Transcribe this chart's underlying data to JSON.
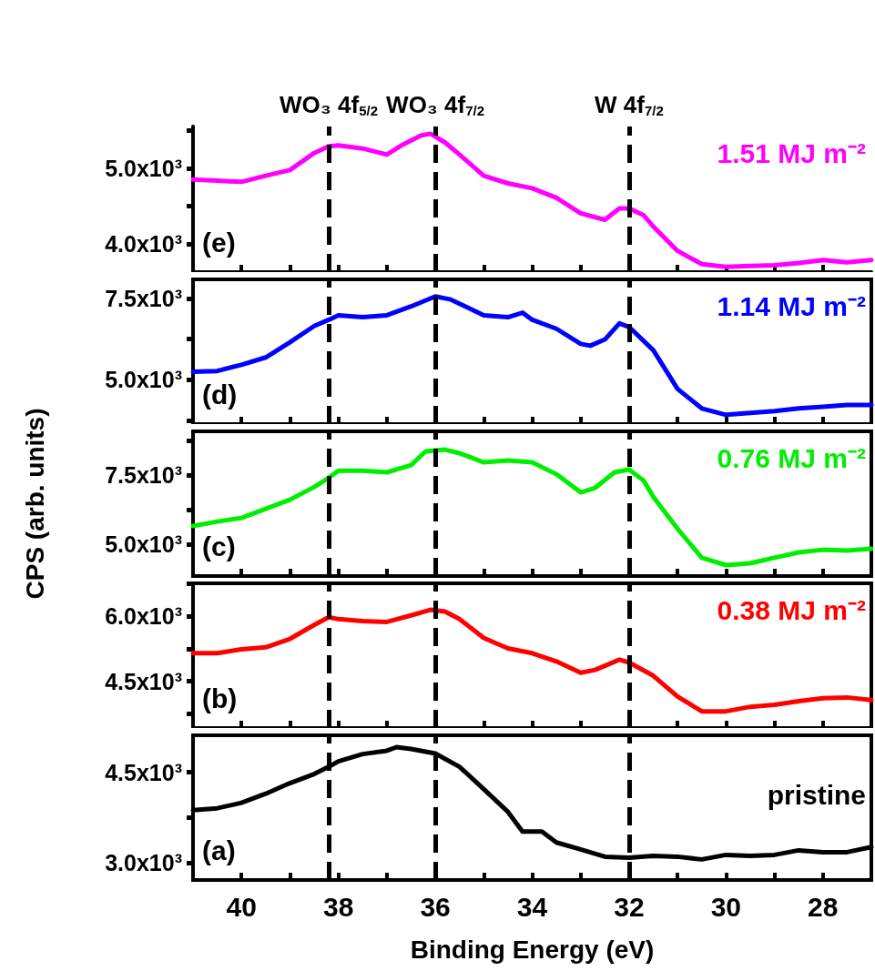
{
  "chart_data": [
    {
      "type": "line",
      "xlim": [
        41,
        27
      ],
      "xticks": [
        40,
        {
          "value": 39,
          "label": null
        },
        38,
        {
          "value": 37,
          "label": null
        },
        36,
        {
          "value": 35,
          "label": null
        },
        34,
        {
          "value": 33,
          "label": null
        },
        32,
        {
          "value": 31,
          "label": null
        },
        30,
        {
          "value": 29,
          "label": null
        },
        28
      ],
      "ylim": [
        3630,
        5550
      ],
      "yticks": [
        {
          "value": 4000,
          "label": "4.0x10³"
        },
        {
          "value": 4500,
          "label": null
        },
        {
          "value": 5000,
          "label": "5.0x10³"
        },
        {
          "value": 5500,
          "label": null
        }
      ],
      "tick_labels": "y",
      "grid": false,
      "legend": false,
      "marker": "none",
      "line_style": "solid",
      "annotations": [
        "(e)"
      ],
      "ref_lines": [
        {
          "axis": "x",
          "value": 38.2,
          "label": "WO₃ 4f$_{5/2}$",
          "color": "#000000",
          "line_style": "dashed"
        },
        {
          "axis": "x",
          "value": 36.0,
          "label": "WO₃ 4f$_{7/2}$",
          "color": "#000000",
          "line_style": "dashed"
        },
        {
          "axis": "x",
          "value": 32.0,
          "label": "W 4f$_{7/2}$",
          "color": "#000000",
          "line_style": "dashed"
        }
      ],
      "x": [
        41,
        40.5,
        40,
        39.5,
        39,
        38.5,
        38.2,
        38,
        37.5,
        37,
        36.7,
        36.3,
        36.1,
        35.8,
        35.5,
        35,
        34.5,
        34,
        33.5,
        33,
        32.5,
        32.2,
        32,
        31.7,
        31.5,
        31,
        30.5,
        30,
        29.5,
        29,
        28.5,
        28,
        27.5,
        27
      ],
      "series": [
        {
          "name": "1.51 MJ m⁻²",
          "color": "#ff00ff",
          "values": [
            4850,
            4835,
            4820,
            4900,
            4975,
            5200,
            5290,
            5300,
            5260,
            5180,
            5300,
            5430,
            5455,
            5340,
            5180,
            4900,
            4800,
            4735,
            4610,
            4405,
            4320,
            4470,
            4470,
            4380,
            4230,
            3910,
            3735,
            3700,
            3710,
            3720,
            3750,
            3790,
            3760,
            3790
          ]
        }
      ]
    },
    {
      "type": "line",
      "xlim": [
        41,
        27
      ],
      "xticks": [
        40,
        {
          "value": 39,
          "label": null
        },
        38,
        {
          "value": 37,
          "label": null
        },
        36,
        {
          "value": 35,
          "label": null
        },
        34,
        {
          "value": 33,
          "label": null
        },
        32,
        {
          "value": 31,
          "label": null
        },
        30,
        {
          "value": 29,
          "label": null
        },
        28
      ],
      "ylim": [
        3640,
        8080
      ],
      "yticks": [
        {
          "value": 3750,
          "label": null
        },
        {
          "value": 5000,
          "label": "5.0x10³"
        },
        {
          "value": 6250,
          "label": null
        },
        {
          "value": 7500,
          "label": "7.5x10³"
        }
      ],
      "tick_labels": "y",
      "grid": false,
      "legend": false,
      "marker": "none",
      "line_style": "solid",
      "annotations": [
        "(d)"
      ],
      "ref_lines": [
        {
          "axis": "x",
          "value": 38.2,
          "color": "#000000",
          "line_style": "dashed"
        },
        {
          "axis": "x",
          "value": 36.0,
          "color": "#000000",
          "line_style": "dashed"
        },
        {
          "axis": "x",
          "value": 32.0,
          "color": "#000000",
          "line_style": "dashed"
        }
      ],
      "x": [
        41,
        40.5,
        40,
        39.5,
        39,
        38.5,
        38.2,
        38,
        37.5,
        37,
        36.5,
        36,
        35.7,
        35.5,
        35,
        34.5,
        34.2,
        34,
        33.5,
        33,
        32.8,
        32.5,
        32.2,
        32,
        31.5,
        31,
        30.5,
        30,
        29.5,
        29,
        28.5,
        28,
        27.5,
        27
      ],
      "series": [
        {
          "name": "1.14 MJ m⁻²",
          "color": "#0000ff",
          "values": [
            5245,
            5270,
            5460,
            5685,
            6150,
            6650,
            6840,
            6980,
            6920,
            6980,
            7250,
            7555,
            7470,
            7335,
            6980,
            6920,
            7060,
            6840,
            6565,
            6100,
            6045,
            6235,
            6730,
            6620,
            5905,
            4720,
            4120,
            3925,
            3980,
            4035,
            4120,
            4170,
            4225,
            4225
          ]
        }
      ]
    },
    {
      "type": "line",
      "xlim": [
        41,
        27
      ],
      "xticks": [
        40,
        {
          "value": 39,
          "label": null
        },
        38,
        {
          "value": 37,
          "label": null
        },
        36,
        {
          "value": 35,
          "label": null
        },
        34,
        {
          "value": 33,
          "label": null
        },
        32,
        {
          "value": 31,
          "label": null
        },
        30,
        {
          "value": 29,
          "label": null
        },
        28
      ],
      "ylim": [
        3850,
        9080
      ],
      "yticks": [
        {
          "value": 5000,
          "label": "5.0x10³"
        },
        {
          "value": 6250,
          "label": null
        },
        {
          "value": 7500,
          "label": "7.5x10³"
        },
        {
          "value": 8750,
          "label": null
        }
      ],
      "ylabel": "CPS (arb. units)",
      "tick_labels": "y",
      "grid": false,
      "legend": false,
      "marker": "none",
      "line_style": "solid",
      "annotations": [
        "(c)"
      ],
      "ref_lines": [
        {
          "axis": "x",
          "value": 38.2,
          "color": "#000000",
          "line_style": "dashed"
        },
        {
          "axis": "x",
          "value": 36.0,
          "color": "#000000",
          "line_style": "dashed"
        },
        {
          "axis": "x",
          "value": 32.0,
          "color": "#000000",
          "line_style": "dashed"
        }
      ],
      "x": [
        41,
        40.5,
        40,
        39.5,
        39,
        38.5,
        38.2,
        38,
        37.5,
        37,
        36.5,
        36.2,
        35.8,
        35.5,
        35,
        34.5,
        34,
        33.5,
        33,
        32.7,
        32.3,
        32,
        31.7,
        31.5,
        31,
        30.5,
        30,
        29.5,
        29,
        28.5,
        28,
        27.5,
        27
      ],
      "series": [
        {
          "name": "0.76 MJ m⁻²",
          "color": "#00ee00",
          "values": [
            5660,
            5820,
            5950,
            6280,
            6610,
            7070,
            7400,
            7660,
            7660,
            7600,
            7860,
            8355,
            8420,
            8290,
            7960,
            8030,
            7960,
            7530,
            6875,
            7040,
            7600,
            7700,
            7300,
            6710,
            5560,
            4510,
            4245,
            4310,
            4510,
            4705,
            4800,
            4770,
            4835
          ]
        }
      ]
    },
    {
      "type": "line",
      "xlim": [
        41,
        27
      ],
      "xticks": [
        40,
        {
          "value": 39,
          "label": null
        },
        38,
        {
          "value": 37,
          "label": null
        },
        36,
        {
          "value": 35,
          "label": null
        },
        34,
        {
          "value": 33,
          "label": null
        },
        32,
        {
          "value": 31,
          "label": null
        },
        30,
        {
          "value": 29,
          "label": null
        },
        28
      ],
      "ylim": [
        3425,
        6760
      ],
      "yticks": [
        {
          "value": 3750,
          "label": null
        },
        {
          "value": 4500,
          "label": "4.5x10³"
        },
        {
          "value": 5250,
          "label": null
        },
        {
          "value": 6000,
          "label": "6.0x10³"
        },
        {
          "value": 6750,
          "label": null
        }
      ],
      "tick_labels": "y",
      "grid": false,
      "legend": false,
      "marker": "none",
      "line_style": "solid",
      "annotations": [
        "(b)"
      ],
      "ref_lines": [
        {
          "axis": "x",
          "value": 38.2,
          "color": "#000000",
          "line_style": "dashed"
        },
        {
          "axis": "x",
          "value": 36.0,
          "color": "#000000",
          "line_style": "dashed"
        },
        {
          "axis": "x",
          "value": 32.0,
          "color": "#000000",
          "line_style": "dashed"
        }
      ],
      "x": [
        41,
        40.5,
        40,
        39.5,
        39,
        38.5,
        38.2,
        38,
        37.5,
        37,
        36.5,
        36.1,
        35.8,
        35.5,
        35,
        34.5,
        34,
        33.5,
        33,
        32.7,
        32.2,
        32,
        31.5,
        31,
        30.5,
        30,
        29.5,
        29,
        28.5,
        28,
        27.5,
        27
      ],
      "series": [
        {
          "name": "0.38 MJ m⁻²",
          "color": "#ff0000",
          "values": [
            5150,
            5150,
            5240,
            5285,
            5480,
            5800,
            5980,
            5935,
            5890,
            5870,
            6020,
            6150,
            6110,
            5935,
            5500,
            5260,
            5150,
            4960,
            4700,
            4765,
            5000,
            4935,
            4630,
            4150,
            3810,
            3810,
            3915,
            3960,
            4045,
            4110,
            4130,
            4070
          ]
        }
      ]
    },
    {
      "type": "line",
      "xlim": [
        41,
        27
      ],
      "xticks": [
        40,
        {
          "value": 39,
          "label": null
        },
        38,
        {
          "value": 37,
          "label": null
        },
        36,
        {
          "value": 35,
          "label": null
        },
        34,
        {
          "value": 33,
          "label": null
        },
        32,
        {
          "value": 31,
          "label": null
        },
        30,
        {
          "value": 29,
          "label": null
        },
        28
      ],
      "ylim": [
        2720,
        5110
      ],
      "yticks": [
        {
          "value": 3000,
          "label": "3.0x10³"
        },
        {
          "value": 3750,
          "label": null
        },
        {
          "value": 4500,
          "label": "4.5x10³"
        }
      ],
      "xlabel": "Binding Energy (eV)",
      "grid": false,
      "legend": false,
      "marker": "none",
      "line_style": "solid",
      "annotations": [
        "(a)"
      ],
      "ref_lines": [
        {
          "axis": "x",
          "value": 38.2,
          "color": "#000000",
          "line_style": "dashed"
        },
        {
          "axis": "x",
          "value": 36.0,
          "color": "#000000",
          "line_style": "dashed"
        },
        {
          "axis": "x",
          "value": 32.0,
          "color": "#000000",
          "line_style": "dashed"
        }
      ],
      "x": [
        41,
        40.5,
        40,
        39.5,
        39,
        38.5,
        38.2,
        38,
        37.5,
        37,
        36.8,
        36.5,
        36,
        35.5,
        35,
        34.5,
        34.2,
        33.8,
        33.5,
        33,
        32.5,
        32,
        31.5,
        31,
        30.5,
        30,
        29.5,
        29,
        28.5,
        28,
        27.5,
        27
      ],
      "series": [
        {
          "name": "pristine",
          "color": "#000000",
          "values": [
            3875,
            3905,
            3995,
            4145,
            4320,
            4470,
            4590,
            4680,
            4800,
            4855,
            4915,
            4885,
            4810,
            4590,
            4220,
            3845,
            3520,
            3520,
            3340,
            3225,
            3105,
            3090,
            3120,
            3105,
            3060,
            3135,
            3120,
            3135,
            3210,
            3180,
            3180,
            3265
          ]
        }
      ]
    }
  ]
}
